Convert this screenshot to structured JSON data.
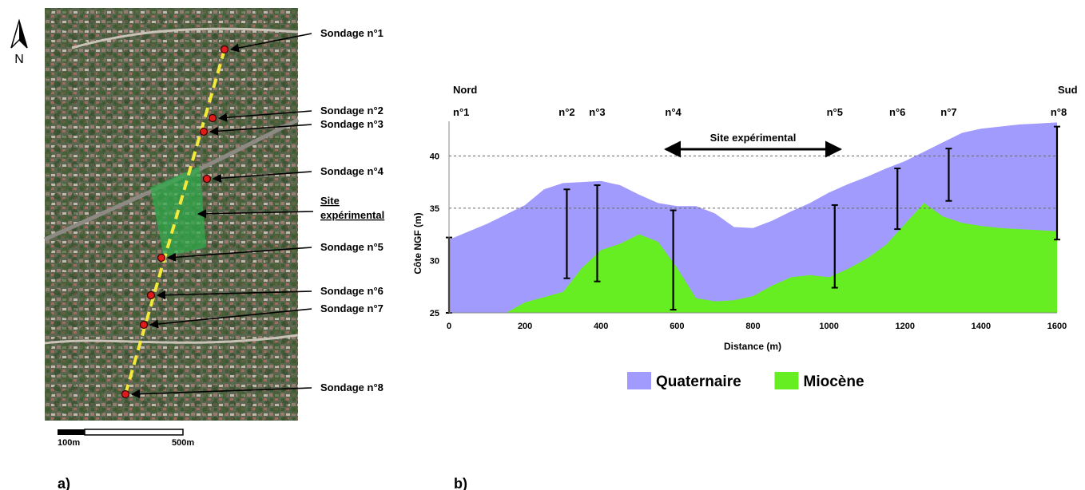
{
  "map": {
    "north_label": "N",
    "scale_left": "100m",
    "scale_right": "500m",
    "callouts": [
      {
        "label": "Sondage n°1"
      },
      {
        "label": "Sondage n°2"
      },
      {
        "label": "Sondage n°3"
      },
      {
        "label": "Sondage n°4"
      },
      {
        "label": "Site",
        "label2": "expérimental",
        "underline": true
      },
      {
        "label": "Sondage n°5"
      },
      {
        "label": "Sondage n°6"
      },
      {
        "label": "Sondage n°7"
      },
      {
        "label": "Sondage n°8"
      }
    ],
    "colors": {
      "site": "#2faa4a",
      "transect": "#f2e93a",
      "point": "#e01b1b",
      "aerial": "#4f5c45"
    }
  },
  "panels": {
    "a": "a)",
    "b": "b)"
  },
  "chart_data": {
    "type": "area",
    "direction_left": "Nord",
    "direction_right": "Sud",
    "xlabel": "Distance (m)",
    "ylabel": "Côte NGF (m)",
    "xlim": [
      0,
      1600
    ],
    "ylim": [
      25,
      43
    ],
    "xticks": [
      0,
      200,
      400,
      600,
      800,
      1000,
      1200,
      1400,
      1600
    ],
    "yticks": [
      25,
      30,
      35,
      40
    ],
    "reference_lines": [
      35,
      40
    ],
    "annotation": {
      "label": "Site expérimental",
      "x_start": 570,
      "x_end": 1030,
      "y": 40.5
    },
    "series": [
      {
        "name": "Quaternaire",
        "color": "#a29bfe",
        "x": [
          0,
          100,
          200,
          250,
          300,
          350,
          400,
          450,
          500,
          550,
          600,
          650,
          700,
          750,
          800,
          850,
          900,
          950,
          1000,
          1050,
          1100,
          1150,
          1200,
          1250,
          1300,
          1350,
          1400,
          1450,
          1500,
          1550,
          1600
        ],
        "y": [
          32,
          33.5,
          35.3,
          36.8,
          37.4,
          37.5,
          37.6,
          37.2,
          36.3,
          35.5,
          35.2,
          35.2,
          34.5,
          33.2,
          33.1,
          33.8,
          34.7,
          35.5,
          36.5,
          37.3,
          38,
          38.8,
          39.5,
          40.4,
          41.3,
          42.2,
          42.6,
          42.8,
          43,
          43.1,
          43.2
        ]
      },
      {
        "name": "Miocène",
        "color": "#66ee22",
        "x": [
          0,
          150,
          200,
          250,
          300,
          350,
          400,
          450,
          500,
          550,
          600,
          650,
          700,
          750,
          800,
          850,
          900,
          950,
          1000,
          1050,
          1100,
          1150,
          1200,
          1250,
          1300,
          1350,
          1400,
          1450,
          1500,
          1550,
          1600
        ],
        "y": [
          25,
          25,
          26,
          26.5,
          27,
          29.3,
          31,
          31.6,
          32.5,
          31.8,
          29.3,
          26.4,
          26.1,
          26.2,
          26.6,
          27.6,
          28.4,
          28.6,
          28.4,
          29.2,
          30.2,
          31.5,
          33.5,
          35.5,
          34.2,
          33.6,
          33.3,
          33.1,
          33,
          32.9,
          32.8
        ]
      }
    ],
    "boreholes": [
      {
        "label": "n°1",
        "x": 0,
        "top": 32.2,
        "bottom": 25
      },
      {
        "label": "n°2",
        "x": 310,
        "top": 36.8,
        "bottom": 28.3
      },
      {
        "label": "n°3",
        "x": 390,
        "top": 37.2,
        "bottom": 28
      },
      {
        "label": "n°4",
        "x": 590,
        "top": 34.8,
        "bottom": 25.3
      },
      {
        "label": "n°5",
        "x": 1015,
        "top": 35.3,
        "bottom": 27.4
      },
      {
        "label": "n°6",
        "x": 1180,
        "top": 38.8,
        "bottom": 33
      },
      {
        "label": "n°7",
        "x": 1315,
        "top": 40.7,
        "bottom": 35.7
      },
      {
        "label": "n°8",
        "x": 1600,
        "top": 42.8,
        "bottom": 32
      }
    ]
  }
}
